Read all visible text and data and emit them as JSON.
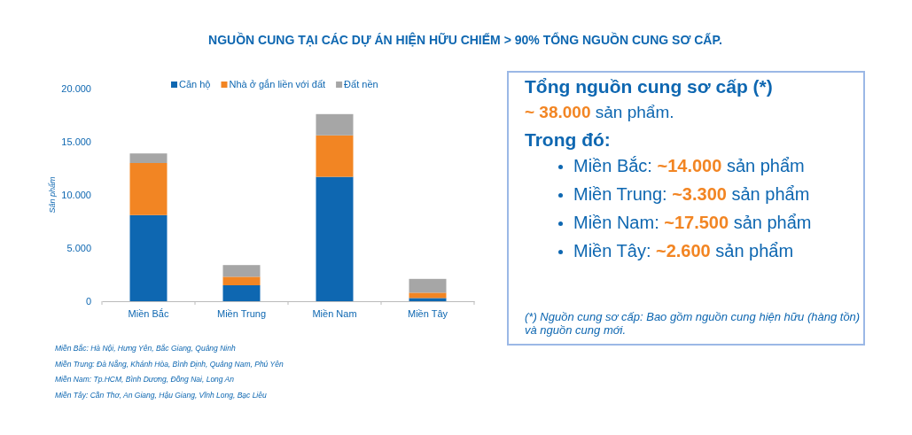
{
  "chart_data": {
    "type": "bar",
    "stacked": true,
    "title": "NGUỒN CUNG TẠI CÁC DỰ ÁN HIỆN HỮU CHIẾM > 90% TỔNG NGUỒN CUNG SƠ CẤP.",
    "ylabel": "Sản phẩm",
    "categories": [
      "Miền Bắc",
      "Miền Trung",
      "Miền Nam",
      "Miền Tây"
    ],
    "series": [
      {
        "name": "Căn hộ",
        "color": "#0e67b1",
        "values": [
          8100,
          1500,
          11700,
          300
        ]
      },
      {
        "name": "Nhà ở gắn liền với đất",
        "color": "#f28523",
        "values": [
          4900,
          800,
          3900,
          500
        ]
      },
      {
        "name": "Đất nền",
        "color": "#a6a6a6",
        "values": [
          900,
          1100,
          2000,
          1300
        ]
      }
    ],
    "ylim": [
      0,
      20000
    ],
    "yticks": [
      {
        "value": 0,
        "label": "0"
      },
      {
        "value": 5000,
        "label": "5.000"
      },
      {
        "value": 10000,
        "label": "10.000"
      },
      {
        "value": 15000,
        "label": "15.000"
      },
      {
        "value": 20000,
        "label": "20.000"
      }
    ],
    "legend": "top",
    "grid": false,
    "annotations": [
      "Miền Bắc: Hà Nội, Hưng Yên, Bắc Giang, Quảng Ninh",
      "Miền Trung: Đà Nẵng, Khánh Hòa, Bình Định, Quảng Nam, Phú Yên",
      "Miền Nam: Tp.HCM, Bình Dương, Đồng Nai, Long An",
      "Miền Tây: Cần Thơ, An Giang, Hậu Giang, Vĩnh Long, Bạc Liêu",
      "Tổng nguồn cung sơ cấp (*)",
      "~ 38.000 sản phẩm.",
      "Trong đó:",
      "Miền Bắc: ~14.000 sản phẩm",
      "Miền Trung: ~3.300 sản phẩm",
      "Miền Nam: ~17.500 sản phẩm",
      "Miền Tây: ~2.600 sản phẩm",
      "(*) Nguồn cung sơ cấp: Bao gồm nguồn cung hiện hữu (hàng tồn) và nguồn cung mới."
    ]
  }
}
